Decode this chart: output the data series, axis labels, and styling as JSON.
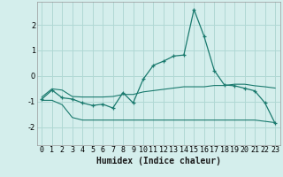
{
  "xlabel": "Humidex (Indice chaleur)",
  "bg_color": "#d4eeec",
  "grid_color": "#b0d8d4",
  "line_color": "#1a7a6e",
  "xlim": [
    -0.5,
    23.5
  ],
  "ylim": [
    -2.7,
    2.9
  ],
  "yticks": [
    -2,
    -1,
    0,
    1,
    2
  ],
  "xticks": [
    0,
    1,
    2,
    3,
    4,
    5,
    6,
    7,
    8,
    9,
    10,
    11,
    12,
    13,
    14,
    15,
    16,
    17,
    18,
    19,
    20,
    21,
    22,
    23
  ],
  "main_x": [
    0,
    1,
    2,
    3,
    4,
    5,
    6,
    7,
    8,
    9,
    10,
    11,
    12,
    13,
    14,
    15,
    16,
    17,
    18,
    19,
    20,
    21,
    22,
    23
  ],
  "main_y": [
    -0.9,
    -0.55,
    -0.85,
    -0.9,
    -1.05,
    -1.15,
    -1.1,
    -1.25,
    -0.65,
    -1.05,
    -0.12,
    0.42,
    0.58,
    0.78,
    0.82,
    2.6,
    1.55,
    0.22,
    -0.35,
    -0.38,
    -0.48,
    -0.58,
    -1.05,
    -1.85
  ],
  "upper_x": [
    0,
    1,
    2,
    3,
    4,
    5,
    6,
    7,
    8,
    9,
    10,
    11,
    12,
    13,
    14,
    15,
    16,
    17,
    18,
    19,
    20,
    21,
    22,
    23
  ],
  "upper_y": [
    -0.82,
    -0.5,
    -0.55,
    -0.8,
    -0.82,
    -0.82,
    -0.82,
    -0.8,
    -0.72,
    -0.72,
    -0.62,
    -0.57,
    -0.52,
    -0.47,
    -0.42,
    -0.42,
    -0.42,
    -0.37,
    -0.37,
    -0.32,
    -0.32,
    -0.38,
    -0.42,
    -0.47
  ],
  "lower_x": [
    0,
    1,
    2,
    3,
    4,
    5,
    6,
    7,
    8,
    9,
    10,
    11,
    12,
    13,
    14,
    15,
    16,
    17,
    18,
    19,
    20,
    21,
    22,
    23
  ],
  "lower_y": [
    -0.95,
    -0.95,
    -1.12,
    -1.62,
    -1.72,
    -1.72,
    -1.72,
    -1.72,
    -1.72,
    -1.72,
    -1.72,
    -1.72,
    -1.72,
    -1.72,
    -1.72,
    -1.72,
    -1.72,
    -1.72,
    -1.72,
    -1.72,
    -1.72,
    -1.72,
    -1.77,
    -1.82
  ],
  "xlabel_fontsize": 7,
  "tick_fontsize": 6,
  "ylabel_fontsize": 6
}
